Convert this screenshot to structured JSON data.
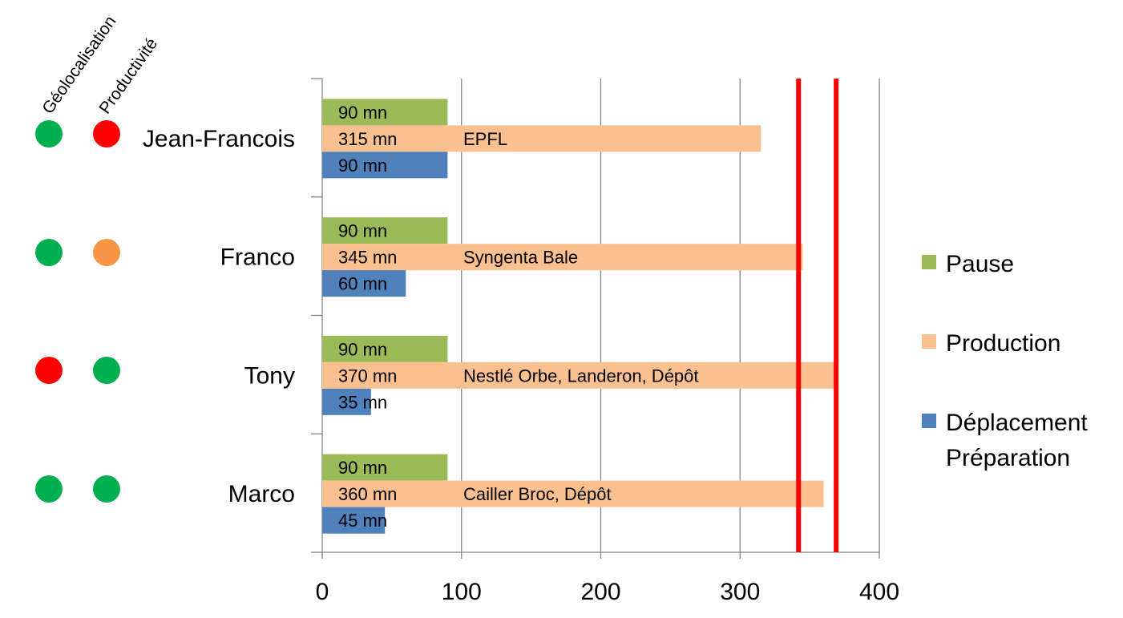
{
  "status_columns": [
    "Géolocalisation",
    "Productivité"
  ],
  "colors": {
    "Pause": "#9bbb59",
    "Production": "#fac090",
    "Déplacement Préparation": "#4f81bd",
    "ok": "#00b050",
    "warning": "#f79646",
    "alert": "#ff0000",
    "threshold": "#ff0000",
    "grid": "#868686"
  },
  "rows": [
    {
      "name": "Jean-Francois",
      "geolocalisation": "ok",
      "productivite": "alert",
      "pause_label": "90 mn",
      "production_label": "315 mn",
      "deplacement_label": "90 mn",
      "sites": "EPFL"
    },
    {
      "name": "Franco",
      "geolocalisation": "ok",
      "productivite": "warning",
      "pause_label": "90 mn",
      "production_label": "345 mn",
      "deplacement_label": "60 mn",
      "sites": "Syngenta Bale"
    },
    {
      "name": "Tony",
      "geolocalisation": "alert",
      "productivite": "ok",
      "pause_label": "90 mn",
      "production_label": "370 mn",
      "deplacement_label": "35 mn",
      "sites": "Nestlé Orbe, Landeron, Dépôt"
    },
    {
      "name": "Marco",
      "geolocalisation": "ok",
      "productivite": "ok",
      "pause_label": "90 mn",
      "production_label": "360 mn",
      "deplacement_label": "45 mn",
      "sites": "Cailler Broc, Dépôt"
    }
  ],
  "chart_data": {
    "type": "bar",
    "orientation": "horizontal",
    "categories": [
      "Jean-Francois",
      "Franco",
      "Tony",
      "Marco"
    ],
    "series": [
      {
        "name": "Pause",
        "values": [
          90,
          90,
          90,
          90
        ]
      },
      {
        "name": "Production",
        "values": [
          315,
          345,
          370,
          360
        ]
      },
      {
        "name": "Déplacement Préparation",
        "values": [
          90,
          60,
          35,
          45
        ]
      }
    ],
    "xlim": [
      0,
      400
    ],
    "xticks": [
      0,
      100,
      200,
      300,
      400
    ],
    "reference_lines": [
      342,
      369
    ],
    "grid": true,
    "legend": [
      "Pause",
      "Production",
      "Déplacement Préparation"
    ],
    "legend_position": "right"
  }
}
